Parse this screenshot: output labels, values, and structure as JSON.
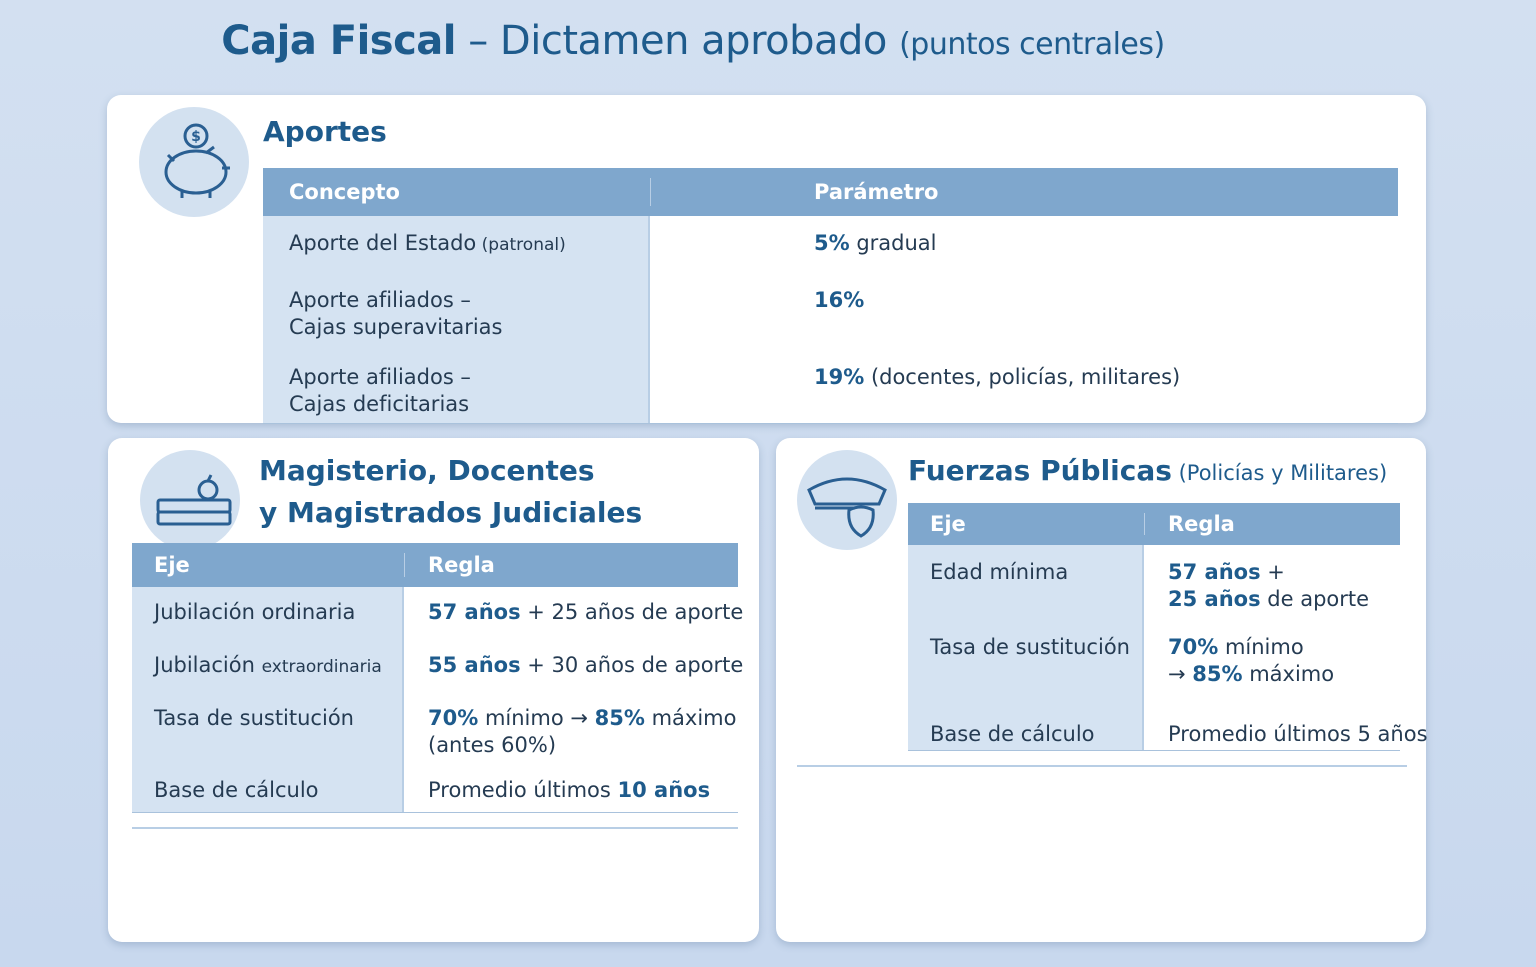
{
  "title": [
    {
      "text": "Caja Fiscal",
      "style": "bold"
    },
    " – Dictamen aprobado ",
    {
      "text": "(puntos centrales)",
      "style": "small"
    }
  ],
  "aportes": {
    "heading": [
      "Aportes"
    ],
    "columns": [
      "Concepto",
      "Parámetro"
    ],
    "rows": [
      [
        [
          [
            "Aporte del Estado",
            {
              "text": " (patronal)",
              "style": "small"
            }
          ]
        ],
        [
          [
            {
              "text": "5%",
              "style": "bold"
            },
            " gradual"
          ]
        ]
      ],
      [
        [
          "Aporte afiliados –",
          "Cajas superavitarias"
        ],
        [
          [
            {
              "text": "16%",
              "style": "bold"
            }
          ]
        ]
      ],
      [
        [
          "Aporte afiliados –",
          "Cajas deficitarias"
        ],
        [
          [
            {
              "text": "19%",
              "style": "bold"
            },
            " (docentes, policías, militares)"
          ]
        ]
      ]
    ]
  },
  "magisterio": {
    "heading": [
      "Magisterio, Docentes",
      "y Magistrados Judiciales"
    ],
    "columns": [
      "Eje",
      "Regla"
    ],
    "rows": [
      [
        [
          "Jubilación ordinaria"
        ],
        [
          [
            {
              "text": "57 años",
              "style": "bold"
            },
            " + 25 años de aporte"
          ]
        ]
      ],
      [
        [
          [
            "Jubilación ",
            {
              "text": "extraordinaria",
              "style": "small"
            }
          ]
        ],
        [
          [
            {
              "text": "55 años",
              "style": "bold"
            },
            " + 30 años de aporte"
          ]
        ]
      ],
      [
        [
          "Tasa de sustitución"
        ],
        [
          [
            {
              "text": "70%",
              "style": "bold"
            },
            " mínimo → ",
            {
              "text": "85%",
              "style": "bold"
            },
            " máximo"
          ],
          [
            "(antes 60%)"
          ]
        ]
      ],
      [
        [
          "Base de cálculo"
        ],
        [
          [
            "Promedio últimos ",
            {
              "text": "10 años",
              "style": "bold"
            }
          ]
        ]
      ]
    ]
  },
  "fuerzas": {
    "heading": [
      [
        {
          "text": "Fuerzas Públicas",
          "style": "bold"
        },
        {
          "text": " (Policías y Militares)",
          "style": "note"
        }
      ]
    ],
    "columns": [
      "Eje",
      "Regla"
    ],
    "rows": [
      [
        [
          "Edad mínima"
        ],
        [
          [
            {
              "text": "57 años",
              "style": "bold"
            },
            " +"
          ],
          [
            {
              "text": "25 años",
              "style": "bold"
            },
            " de aporte"
          ]
        ]
      ],
      [
        [
          "Tasa de sustitución"
        ],
        [
          [
            {
              "text": "70%",
              "style": "bold"
            },
            " mínimo"
          ],
          [
            "→ ",
            {
              "text": "85%",
              "style": "bold"
            },
            " máximo"
          ]
        ]
      ],
      [
        [
          "Base de cálculo"
        ],
        [
          "Promedio últimos 5 años"
        ]
      ]
    ]
  }
}
